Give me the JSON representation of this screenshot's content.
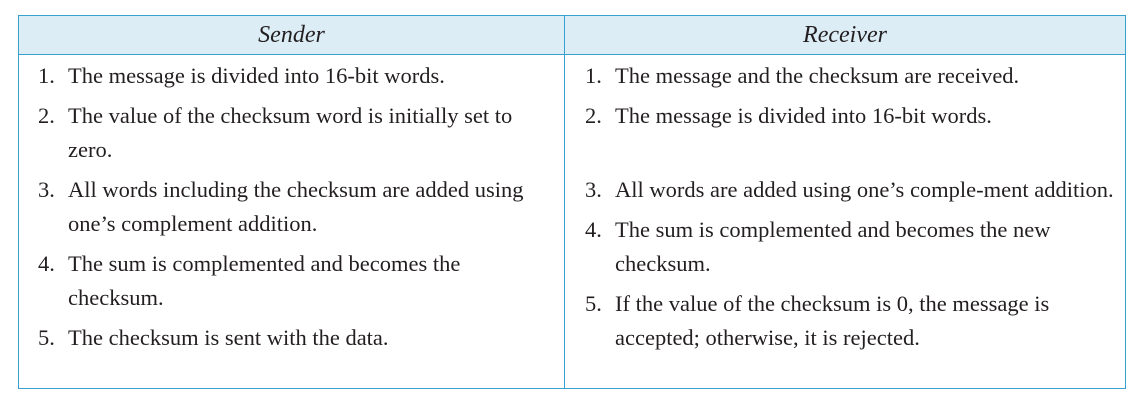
{
  "table": {
    "headers": {
      "sender": "Sender",
      "receiver": "Receiver"
    },
    "sender": [
      {
        "num": "1.",
        "text": "The message is divided into 16-bit words."
      },
      {
        "num": "2.",
        "text": "The value of the checksum word is initially set to zero."
      },
      {
        "num": "3.",
        "text": "All words including the checksum are added using one’s complement addition."
      },
      {
        "num": "4.",
        "text": "The sum is complemented and becomes the checksum."
      },
      {
        "num": "5.",
        "text": "The checksum is sent with the data."
      }
    ],
    "receiver": [
      {
        "num": "1.",
        "text": "The message and the checksum are received."
      },
      {
        "num": "2.",
        "text": "The message is divided into 16-bit words."
      },
      {
        "num": "3.",
        "text": "All words are added using one’s comple-ment addition."
      },
      {
        "num": "4.",
        "text": "The sum is complemented and becomes the new checksum."
      },
      {
        "num": "5.",
        "text": "If the value of the checksum is 0, the message is accepted; otherwise, it is rejected."
      }
    ],
    "colors": {
      "border": "#3aa0cf",
      "header_bg": "#dcedf6",
      "text": "#231f20"
    }
  }
}
